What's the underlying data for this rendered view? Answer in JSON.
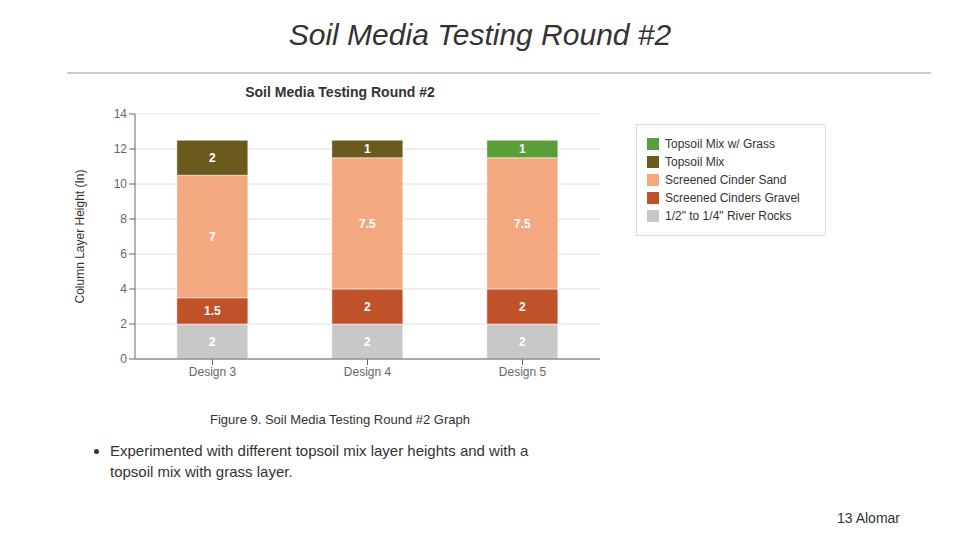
{
  "chart_data": {
    "type": "bar",
    "title": "Soil Media Testing Round #2",
    "categories": [
      "Design 3",
      "Design 4",
      "Design 5"
    ],
    "series": [
      {
        "name": "1/2\" to 1/4\" River Rocks",
        "color": "#c8c8c8",
        "values": [
          2,
          2,
          2
        ]
      },
      {
        "name": "Screened Cinders Gravel",
        "color": "#c0522a",
        "values": [
          1.5,
          2,
          2
        ]
      },
      {
        "name": "Screened Cinder Sand",
        "color": "#f4a880",
        "values": [
          7,
          7.5,
          7.5
        ]
      },
      {
        "name": "Topsoil Mix",
        "color": "#6b5a1e",
        "values": [
          2,
          1,
          0
        ]
      },
      {
        "name": "Topsoil Mix w/ Grass",
        "color": "#5a9e3a",
        "values": [
          0,
          0,
          1
        ]
      }
    ],
    "ylabel": "Column Layer Height (In)",
    "ylim": [
      0,
      14
    ],
    "yticks": [
      0,
      2,
      4,
      6,
      8,
      10,
      12,
      14
    ],
    "grid": true,
    "stacked": true,
    "data_labels": true,
    "legend": "upper right",
    "annotations": [
      "Soil Media Testing Round #2",
      "Figure 9. Soil Media Testing Round #2 Graph",
      "Experimented with different topsoil mix layer heights and with a\ntopsoil mix with grass layer.",
      "13 Alomar"
    ]
  }
}
